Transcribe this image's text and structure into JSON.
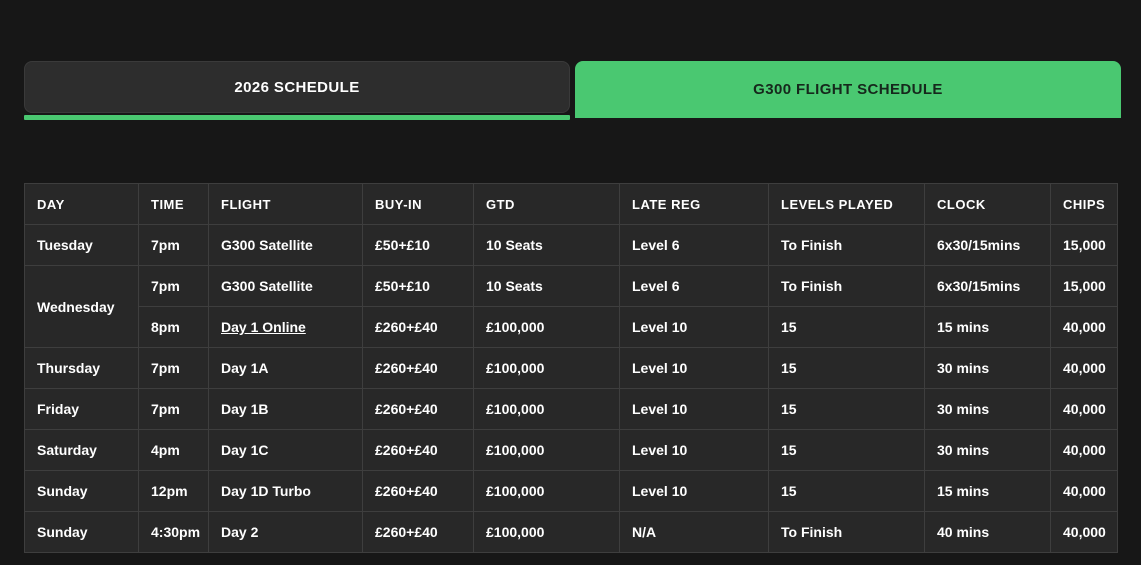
{
  "colors": {
    "accent_green": "#4ac871",
    "page_background": "#171717",
    "inactive_tab_background": "#2d2d2d",
    "table_cell_background": "#282828",
    "table_border": "#3e3e3e",
    "table_text": "#ffffff",
    "active_tab_text": "#16281c"
  },
  "tabs": [
    {
      "label": "2026 SCHEDULE",
      "active": false
    },
    {
      "label": "G300 FLIGHT SCHEDULE",
      "active": true
    }
  ],
  "table": {
    "columns": [
      "DAY",
      "TIME",
      "FLIGHT",
      "BUY-IN",
      "GTD",
      "LATE REG",
      "LEVELS PLAYED",
      "CLOCK",
      "CHIPS"
    ],
    "rows": [
      {
        "day": "Tuesday",
        "day_rowspan": 1,
        "time": "7pm",
        "flight": "G300 Satellite",
        "flight_is_link": false,
        "buy_in": "£50+£10",
        "gtd": "10 Seats",
        "late_reg": "Level 6",
        "levels_played": "To Finish",
        "clock": "6x30/15mins",
        "chips": "15,000"
      },
      {
        "day": "Wednesday",
        "day_rowspan": 2,
        "time": "7pm",
        "flight": "G300 Satellite",
        "flight_is_link": false,
        "buy_in": "£50+£10",
        "gtd": "10 Seats",
        "late_reg": "Level 6",
        "levels_played": "To Finish",
        "clock": "6x30/15mins",
        "chips": "15,000"
      },
      {
        "day": null,
        "time": "8pm",
        "flight": "Day 1 Online",
        "flight_is_link": true,
        "buy_in": "£260+£40",
        "gtd": "£100,000",
        "late_reg": "Level 10",
        "levels_played": "15",
        "clock": "15 mins",
        "chips": "40,000"
      },
      {
        "day": "Thursday",
        "day_rowspan": 1,
        "time": "7pm",
        "flight": "Day 1A",
        "flight_is_link": false,
        "buy_in": "£260+£40",
        "gtd": "£100,000",
        "late_reg": "Level 10",
        "levels_played": "15",
        "clock": "30 mins",
        "chips": "40,000"
      },
      {
        "day": "Friday",
        "day_rowspan": 1,
        "time": "7pm",
        "flight": "Day 1B",
        "flight_is_link": false,
        "buy_in": "£260+£40",
        "gtd": "£100,000",
        "late_reg": "Level 10",
        "levels_played": "15",
        "clock": "30 mins",
        "chips": "40,000"
      },
      {
        "day": "Saturday",
        "day_rowspan": 1,
        "time": "4pm",
        "flight": "Day 1C",
        "flight_is_link": false,
        "buy_in": "£260+£40",
        "gtd": "£100,000",
        "late_reg": "Level 10",
        "levels_played": "15",
        "clock": "30 mins",
        "chips": "40,000"
      },
      {
        "day": "Sunday",
        "day_rowspan": 1,
        "time": "12pm",
        "flight": "Day 1D Turbo",
        "flight_is_link": false,
        "buy_in": "£260+£40",
        "gtd": "£100,000",
        "late_reg": "Level 10",
        "levels_played": "15",
        "clock": "15 mins",
        "chips": "40,000"
      },
      {
        "day": "Sunday",
        "day_rowspan": 1,
        "time": "4:30pm",
        "flight": "Day 2",
        "flight_is_link": false,
        "buy_in": "£260+£40",
        "gtd": "£100,000",
        "late_reg": "N/A",
        "levels_played": "To Finish",
        "clock": "40 mins",
        "chips": "40,000"
      }
    ]
  }
}
